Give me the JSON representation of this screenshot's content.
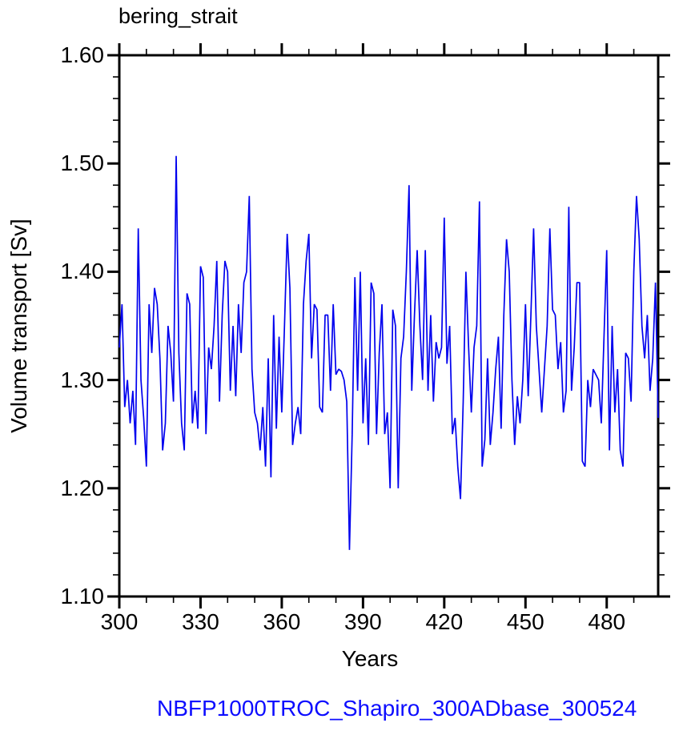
{
  "title": "bering_strait",
  "annotation": {
    "text": "NBFP1000TROC_Shapiro_300ADbase_300524",
    "color": "#0d0dff"
  },
  "chart_data": {
    "type": "line",
    "title": "bering_strait",
    "xlabel": "Years",
    "ylabel": "Volume transport [Sv]",
    "xlim": [
      300,
      499
    ],
    "ylim": [
      1.1,
      1.6
    ],
    "grid": false,
    "legend": "none",
    "frame": "box-with-outward-ticks",
    "x_major_ticks": [
      300,
      330,
      360,
      390,
      420,
      450,
      480
    ],
    "x_tick_labels": [
      "300",
      "330",
      "360",
      "390",
      "420",
      "450",
      "480"
    ],
    "x_minor_step": 10,
    "y_major_ticks": [
      1.1,
      1.2,
      1.3,
      1.4,
      1.5,
      1.6
    ],
    "y_tick_labels": [
      "1.10",
      "1.20",
      "1.30",
      "1.40",
      "1.50",
      "1.60"
    ],
    "y_minor_step": 0.02,
    "line_color": "#0000ee",
    "axis_color": "#000000",
    "series": [
      {
        "name": "volume_transport",
        "x_start": 300,
        "x_step": 1,
        "values": [
          1.33,
          1.37,
          1.275,
          1.3,
          1.26,
          1.29,
          1.24,
          1.44,
          1.3,
          1.265,
          1.22,
          1.37,
          1.325,
          1.385,
          1.37,
          1.32,
          1.235,
          1.26,
          1.35,
          1.325,
          1.28,
          1.507,
          1.325,
          1.26,
          1.235,
          1.38,
          1.37,
          1.26,
          1.29,
          1.255,
          1.405,
          1.395,
          1.25,
          1.33,
          1.31,
          1.35,
          1.41,
          1.28,
          1.36,
          1.41,
          1.4,
          1.29,
          1.35,
          1.285,
          1.37,
          1.325,
          1.39,
          1.4,
          1.47,
          1.31,
          1.27,
          1.26,
          1.235,
          1.275,
          1.22,
          1.32,
          1.21,
          1.36,
          1.255,
          1.34,
          1.27,
          1.35,
          1.435,
          1.385,
          1.24,
          1.26,
          1.275,
          1.25,
          1.37,
          1.41,
          1.435,
          1.32,
          1.37,
          1.365,
          1.275,
          1.27,
          1.36,
          1.36,
          1.29,
          1.37,
          1.305,
          1.31,
          1.308,
          1.3,
          1.28,
          1.143,
          1.25,
          1.395,
          1.29,
          1.4,
          1.26,
          1.32,
          1.24,
          1.39,
          1.38,
          1.25,
          1.325,
          1.37,
          1.25,
          1.27,
          1.2,
          1.365,
          1.35,
          1.2,
          1.32,
          1.34,
          1.4,
          1.48,
          1.29,
          1.36,
          1.42,
          1.35,
          1.3,
          1.42,
          1.29,
          1.36,
          1.28,
          1.335,
          1.32,
          1.33,
          1.45,
          1.315,
          1.35,
          1.25,
          1.265,
          1.22,
          1.19,
          1.28,
          1.4,
          1.33,
          1.27,
          1.33,
          1.35,
          1.465,
          1.22,
          1.245,
          1.32,
          1.24,
          1.27,
          1.31,
          1.34,
          1.255,
          1.36,
          1.43,
          1.4,
          1.3,
          1.24,
          1.285,
          1.26,
          1.3,
          1.37,
          1.285,
          1.36,
          1.44,
          1.35,
          1.31,
          1.27,
          1.31,
          1.35,
          1.44,
          1.365,
          1.36,
          1.31,
          1.335,
          1.27,
          1.29,
          1.46,
          1.29,
          1.33,
          1.39,
          1.39,
          1.225,
          1.22,
          1.3,
          1.275,
          1.31,
          1.305,
          1.3,
          1.26,
          1.34,
          1.42,
          1.235,
          1.35,
          1.27,
          1.31,
          1.235,
          1.22,
          1.325,
          1.32,
          1.28,
          1.4,
          1.47,
          1.43,
          1.35,
          1.32,
          1.36,
          1.29,
          1.32,
          1.39,
          1.265
        ]
      }
    ]
  }
}
